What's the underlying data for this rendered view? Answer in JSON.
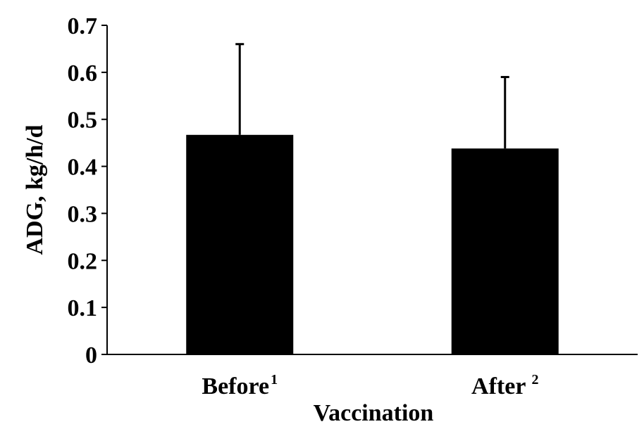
{
  "chart_data": {
    "type": "bar",
    "categories": [
      "Before",
      "After"
    ],
    "category_superscripts": [
      "1",
      "2"
    ],
    "values": [
      0.467,
      0.438
    ],
    "error_upper": [
      0.66,
      0.59
    ],
    "ylim": [
      0,
      0.7
    ],
    "yticks": [
      "0",
      "0.1",
      "0.2",
      "0.3",
      "0.4",
      "0.5",
      "0.6",
      "0.7"
    ],
    "xlabel": "Vaccination",
    "ylabel": "ADG, kg/h/d",
    "grid": false,
    "bar_color": "#000000"
  }
}
